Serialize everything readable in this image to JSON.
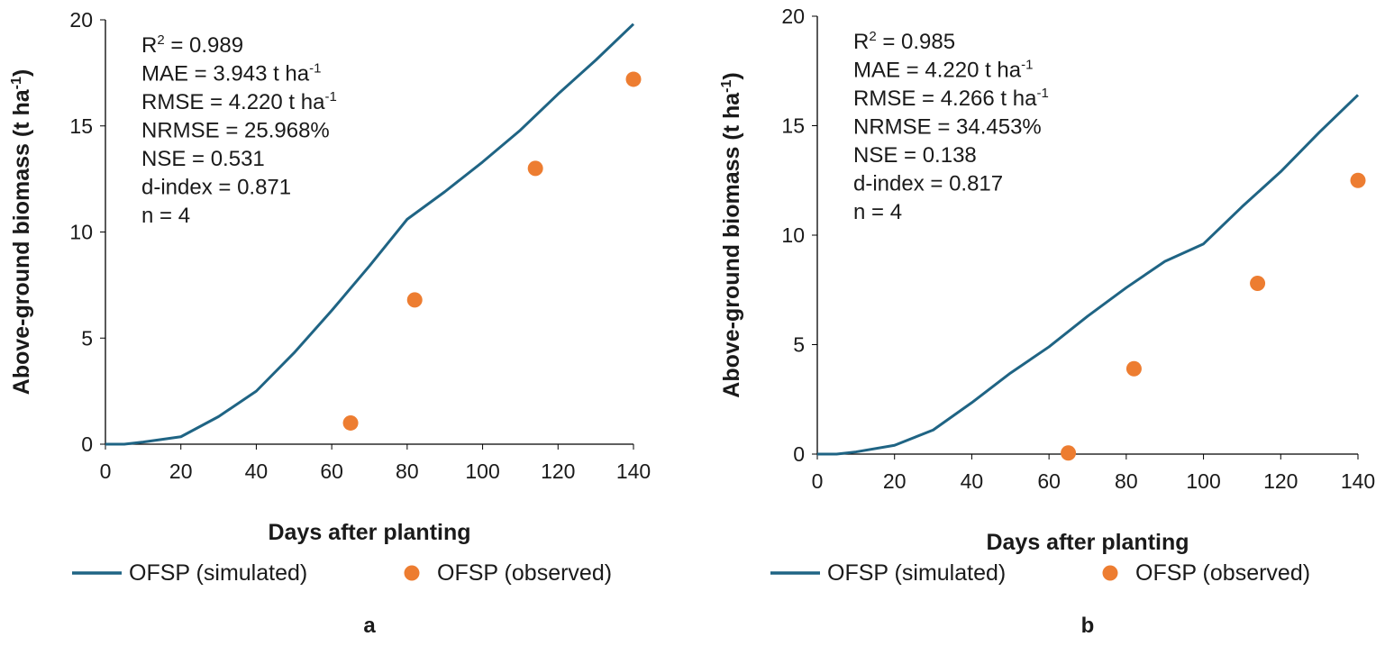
{
  "chart_data": [
    {
      "type": "line",
      "panel_label": "a",
      "xlabel": "Days after planting",
      "ylabel": "Above-ground biomass (t ha-1)",
      "ylabel_main": "Above-ground biomass (t ha",
      "ylabel_sup": "-1",
      "ylabel_end": ")",
      "xlim": [
        0,
        140
      ],
      "ylim": [
        0,
        20
      ],
      "xticks": [
        "0",
        "20",
        "40",
        "60",
        "80",
        "100",
        "120",
        "140"
      ],
      "yticks": [
        "0",
        "5",
        "10",
        "15",
        "20"
      ],
      "series": [
        {
          "name": "OFSP (simulated)",
          "type": "line",
          "color": "#1f6484",
          "x": [
            0,
            5,
            10,
            20,
            30,
            40,
            50,
            60,
            70,
            80,
            90,
            100,
            110,
            120,
            130,
            140
          ],
          "y": [
            0,
            0,
            0.1,
            0.35,
            1.3,
            2.5,
            4.3,
            6.3,
            8.4,
            10.6,
            11.9,
            13.3,
            14.8,
            16.5,
            18.1,
            19.8
          ]
        },
        {
          "name": "OFSP (observed)",
          "type": "scatter",
          "color": "#ed7d31",
          "x": [
            65,
            82,
            114,
            140
          ],
          "y": [
            1.0,
            6.8,
            13.0,
            17.2
          ]
        }
      ],
      "annotations": [
        {
          "main": "R",
          "sup": "2",
          "end": " = 0.989"
        },
        {
          "main": "MAE = 3.943 t ha",
          "sup": "-1",
          "end": ""
        },
        {
          "main": "RMSE = 4.220 t ha",
          "sup": "-1",
          "end": ""
        },
        {
          "main": "NRMSE = 25.968%",
          "sup": "",
          "end": ""
        },
        {
          "main": "NSE = 0.531",
          "sup": "",
          "end": ""
        },
        {
          "main": "d-index = 0.871",
          "sup": "",
          "end": ""
        },
        {
          "main": "n = 4",
          "sup": "",
          "end": ""
        }
      ]
    },
    {
      "type": "line",
      "panel_label": "b",
      "xlabel": "Days after planting",
      "ylabel": "Above-ground biomass (t ha-1)",
      "ylabel_main": "Above-ground biomass (t ha",
      "ylabel_sup": "-1",
      "ylabel_end": ")",
      "xlim": [
        0,
        140
      ],
      "ylim": [
        0,
        20
      ],
      "xticks": [
        "0",
        "20",
        "40",
        "60",
        "80",
        "100",
        "120",
        "140"
      ],
      "yticks": [
        "0",
        "5",
        "10",
        "15",
        "20"
      ],
      "series": [
        {
          "name": "OFSP (simulated)",
          "type": "line",
          "color": "#1f6484",
          "x": [
            0,
            5,
            10,
            20,
            30,
            40,
            50,
            60,
            70,
            80,
            90,
            100,
            110,
            120,
            130,
            140
          ],
          "y": [
            0,
            0,
            0.1,
            0.4,
            1.1,
            2.35,
            3.7,
            4.9,
            6.3,
            7.6,
            8.8,
            9.6,
            11.3,
            12.9,
            14.7,
            16.4
          ]
        },
        {
          "name": "OFSP (observed)",
          "type": "scatter",
          "color": "#ed7d31",
          "x": [
            65,
            82,
            114,
            140
          ],
          "y": [
            0.05,
            3.9,
            7.8,
            12.5
          ]
        }
      ],
      "annotations": [
        {
          "main": "R",
          "sup": "2",
          "end": " = 0.985"
        },
        {
          "main": "MAE = 4.220 t ha",
          "sup": "-1",
          "end": ""
        },
        {
          "main": "RMSE = 4.266 t ha",
          "sup": "-1",
          "end": ""
        },
        {
          "main": "NRMSE = 34.453%",
          "sup": "",
          "end": ""
        },
        {
          "main": "NSE = 0.138",
          "sup": "",
          "end": ""
        },
        {
          "main": "d-index = 0.817",
          "sup": "",
          "end": ""
        },
        {
          "main": "n = 4",
          "sup": "",
          "end": ""
        }
      ]
    }
  ]
}
